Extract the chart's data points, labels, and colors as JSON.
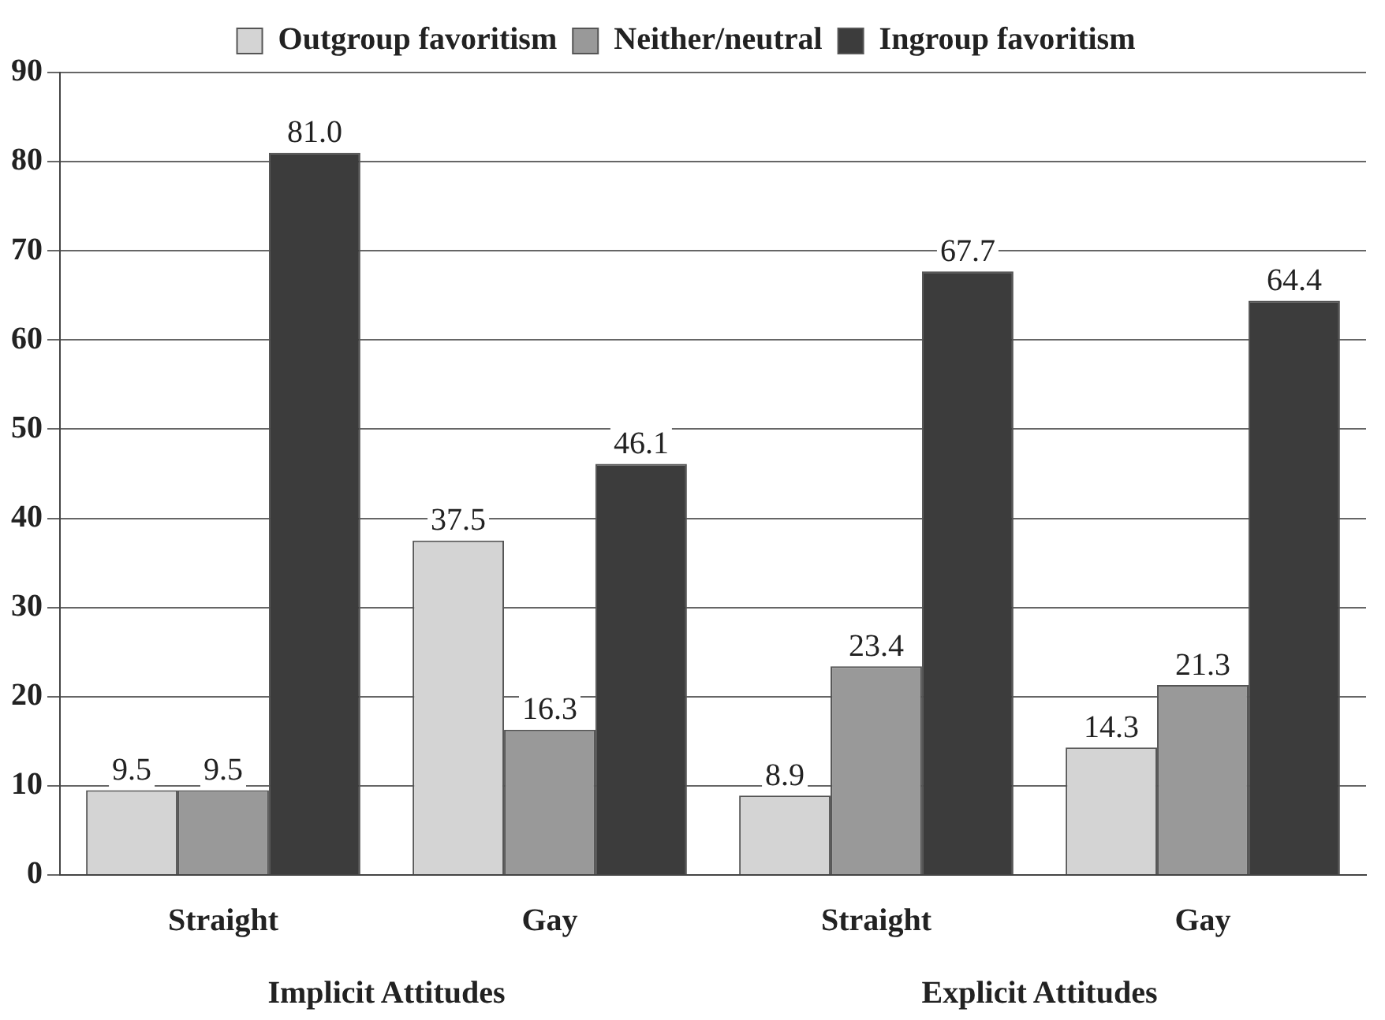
{
  "chart_data": {
    "type": "bar",
    "categories": [
      "Straight",
      "Gay",
      "Straight",
      "Gay"
    ],
    "series": [
      {
        "name": "Outgroup favoritism",
        "color": "#d4d4d4",
        "values": [
          9.5,
          37.5,
          8.9,
          14.3
        ],
        "value_labels": [
          "9.5",
          "37.5",
          "8.9",
          "14.3"
        ]
      },
      {
        "name": "Neither/neutral",
        "color": "#999999",
        "values": [
          9.5,
          16.3,
          23.4,
          21.3
        ],
        "value_labels": [
          "9.5",
          "16.3",
          "23.4",
          "21.3"
        ]
      },
      {
        "name": "Ingroup favoritism",
        "color": "#3c3c3c",
        "values": [
          81.0,
          46.1,
          67.7,
          64.4
        ],
        "value_labels": [
          "81.0",
          "46.1",
          "67.7",
          "64.4"
        ]
      }
    ],
    "ylim": [
      0,
      90
    ],
    "yticks": [
      0,
      10,
      20,
      30,
      40,
      50,
      60,
      70,
      80,
      90
    ],
    "grid": "y",
    "legend": "top",
    "annotations": [
      "Implicit Attitudes",
      "Explicit Attitudes"
    ]
  }
}
